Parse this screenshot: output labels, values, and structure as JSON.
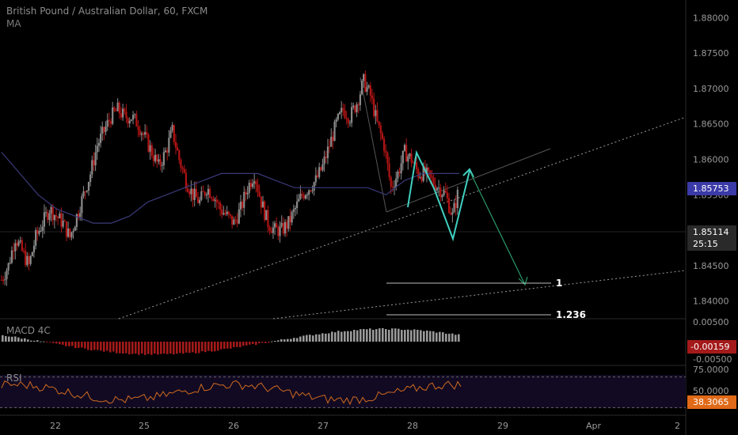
{
  "header": {
    "title": "British Pound / Australian Dollar, 60, FXCM",
    "indicator": "MA"
  },
  "panes": {
    "macd_label": "MACD 4C",
    "rsi_label": "RSI"
  },
  "badges": {
    "current_price": "1.85753",
    "last_price": "1.85114",
    "countdown": "25:15",
    "macd_value": "-0.00159",
    "rsi_value": "38.3065"
  },
  "fib": {
    "level_1": "1",
    "level_1236": "1.236"
  },
  "colors": {
    "background": "#000000",
    "bull": "#8a8a8a",
    "bear": "#b01414",
    "ma": "#3a3a7a",
    "sketch": "#40d0c0",
    "rsi": "#d06a20",
    "rsi_fill": "#120a22"
  },
  "chart_data": {
    "type": "candlestick",
    "price_axis": {
      "ticks": [
        "1.88000",
        "1.87500",
        "1.87000",
        "1.86500",
        "1.86000",
        "1.85500",
        "1.85000",
        "1.84500",
        "1.84000"
      ],
      "ylim": [
        1.8375,
        1.8825
      ]
    },
    "time_axis": {
      "ticks": [
        "22",
        "25",
        "26",
        "27",
        "28",
        "29",
        "Apr",
        "2"
      ]
    },
    "macd_axis": {
      "ticks": [
        "0.00500",
        "-0.00500"
      ],
      "ylim": [
        -0.007,
        0.007
      ]
    },
    "rsi_axis": {
      "ticks": [
        "75.0000",
        "50.0000"
      ],
      "levels": [
        70,
        30
      ],
      "ylim": [
        20,
        80
      ]
    },
    "close_path": [
      1.843,
      1.845,
      1.849,
      1.847,
      1.845,
      1.849,
      1.851,
      1.853,
      1.852,
      1.851,
      1.849,
      1.852,
      1.855,
      1.858,
      1.862,
      1.864,
      1.866,
      1.867,
      1.866,
      1.866,
      1.865,
      1.863,
      1.861,
      1.859,
      1.861,
      1.864,
      1.86,
      1.857,
      1.855,
      1.854,
      1.856,
      1.855,
      1.853,
      1.852,
      1.851,
      1.853,
      1.856,
      1.858,
      1.854,
      1.851,
      1.85,
      1.85,
      1.851,
      1.853,
      1.855,
      1.856,
      1.857,
      1.859,
      1.862,
      1.865,
      1.867,
      1.866,
      1.868,
      1.871,
      1.869,
      1.865,
      1.862,
      1.856,
      1.858,
      1.861,
      1.86,
      1.858,
      1.858,
      1.857,
      1.856,
      1.855,
      1.852,
      1.856
    ],
    "ma_path": [
      1.861,
      1.858,
      1.855,
      1.853,
      1.852,
      1.851,
      1.851,
      1.852,
      1.854,
      1.855,
      1.856,
      1.857,
      1.858,
      1.858,
      1.858,
      1.857,
      1.856,
      1.856,
      1.856,
      1.856,
      1.856,
      1.855,
      1.857,
      1.858,
      1.858,
      1.858
    ]
  }
}
